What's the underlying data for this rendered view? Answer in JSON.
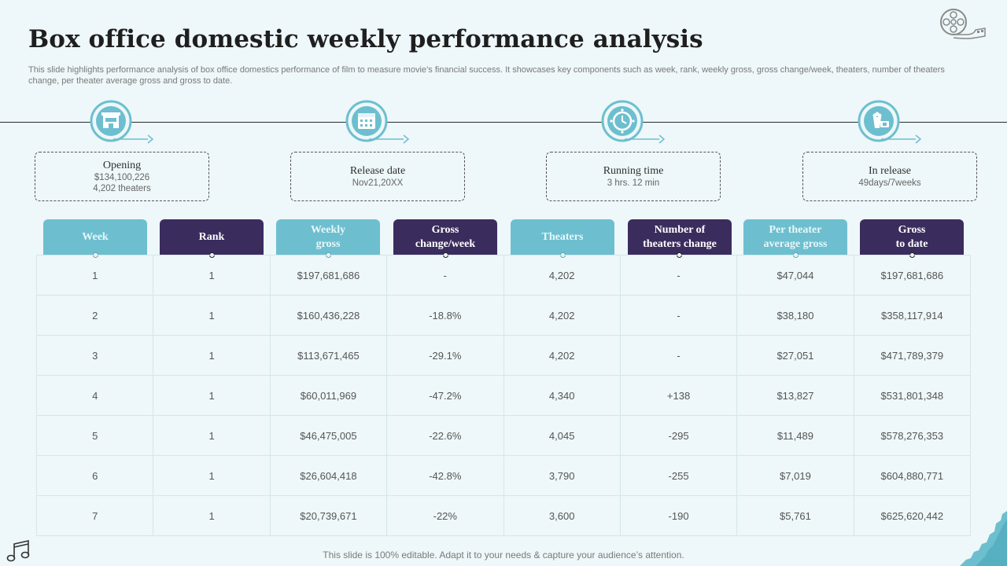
{
  "title": "Box office domestic weekly performance analysis",
  "description": "This slide highlights performance analysis of box office domestics performance of film to measure movie’s financial success. It showcases key components such as week, rank, weekly gross, gross change/week, theaters, number of theaters change, per theater average gross and gross to date.",
  "colors": {
    "teal": "#6dbfcf",
    "navy": "#3b2c5e",
    "background": "#eef7f9"
  },
  "milestones": [
    {
      "icon": "cinema-building-icon",
      "label": "Opening",
      "lines": [
        "$134,100,226",
        "4,202 theaters"
      ]
    },
    {
      "icon": "calendar-icon",
      "label": "Release date",
      "lines": [
        "Nov21,20XX"
      ]
    },
    {
      "icon": "film-reel-clock-icon",
      "label": "Running time",
      "lines": [
        "3 hrs. 12 min"
      ]
    },
    {
      "icon": "popcorn-ticket-icon",
      "label": "In release",
      "lines": [
        "49days/7weeks"
      ]
    }
  ],
  "table": {
    "headers": [
      {
        "line1": "Week",
        "line2": ""
      },
      {
        "line1": "Rank",
        "line2": ""
      },
      {
        "line1": "Weekly",
        "line2": "gross"
      },
      {
        "line1": "Gross",
        "line2": "change/week"
      },
      {
        "line1": "Theaters",
        "line2": ""
      },
      {
        "line1": "Number of",
        "line2": "theaters change"
      },
      {
        "line1": "Per theater",
        "line2": "average gross"
      },
      {
        "line1": "Gross",
        "line2": "to date"
      }
    ],
    "rows": [
      [
        "1",
        "1",
        "$197,681,686",
        "-",
        "4,202",
        "-",
        "$47,044",
        "$197,681,686"
      ],
      [
        "2",
        "1",
        "$160,436,228",
        "-18.8%",
        "4,202",
        "-",
        "$38,180",
        "$358,117,914"
      ],
      [
        "3",
        "1",
        "$113,671,465",
        "-29.1%",
        "4,202",
        "-",
        "$27,051",
        "$471,789,379"
      ],
      [
        "4",
        "1",
        "$60,011,969",
        "-47.2%",
        "4,340",
        "+138",
        "$13,827",
        "$531,801,348"
      ],
      [
        "5",
        "1",
        "$46,475,005",
        "-22.6%",
        "4,045",
        "-295",
        "$11,489",
        "$578,276,353"
      ],
      [
        "6",
        "1",
        "$26,604,418",
        "-42.8%",
        "3,790",
        "-255",
        "$7,019",
        "$604,880,771"
      ],
      [
        "7",
        "1",
        "$20,739,671",
        "-22%",
        "3,600",
        "-190",
        "$5,761",
        "$625,620,442"
      ]
    ]
  },
  "footer": "This slide is 100% editable. Adapt it to your needs & capture your audience’s attention."
}
